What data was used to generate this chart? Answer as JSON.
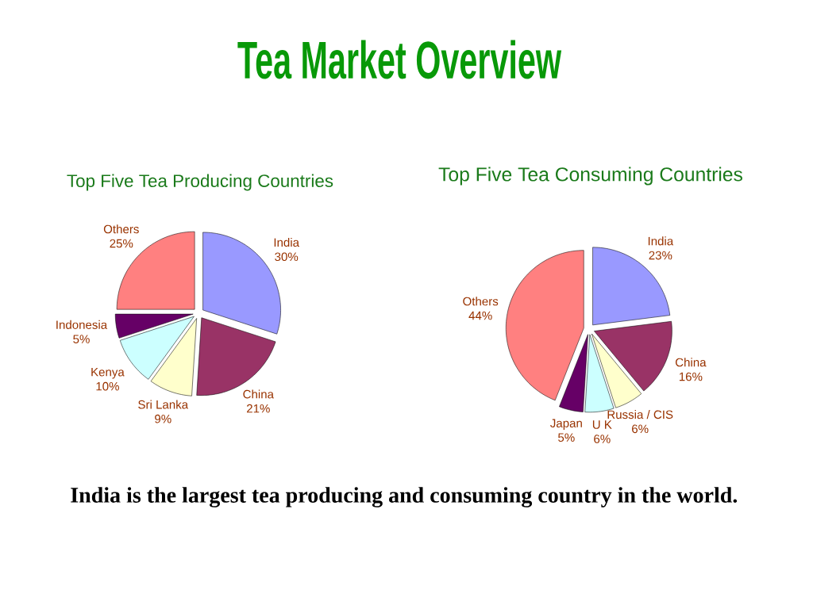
{
  "chart_data": [
    {
      "type": "other",
      "title": "Tea Market Overview",
      "annotations": [
        "India is the largest tea producing and consuming country in the world."
      ]
    },
    {
      "type": "pie",
      "title": "Top Five Tea Producing Countries",
      "categories": [
        "India",
        "China",
        "Sri Lanka",
        "Kenya",
        "Indonesia",
        "Others"
      ],
      "values": [
        30,
        21,
        9,
        10,
        5,
        25
      ],
      "value_labels": [
        "30%",
        "21%",
        "9%",
        "10%",
        "5%",
        "25%"
      ],
      "colors": [
        "#9999ff",
        "#993366",
        "#ffffcc",
        "#ccffff",
        "#660066",
        "#ff8080"
      ]
    },
    {
      "type": "pie",
      "title": "Top Five Tea Consuming Countries",
      "categories": [
        "India",
        "China",
        "Russia / CIS",
        "U K",
        "Japan",
        "Others"
      ],
      "values": [
        23,
        16,
        6,
        6,
        5,
        44
      ],
      "value_labels": [
        "23%",
        "16%",
        "6%",
        "6%",
        "5%",
        "44%"
      ],
      "colors": [
        "#9999ff",
        "#993366",
        "#ffffcc",
        "#ccffff",
        "#660066",
        "#ff8080"
      ]
    }
  ]
}
